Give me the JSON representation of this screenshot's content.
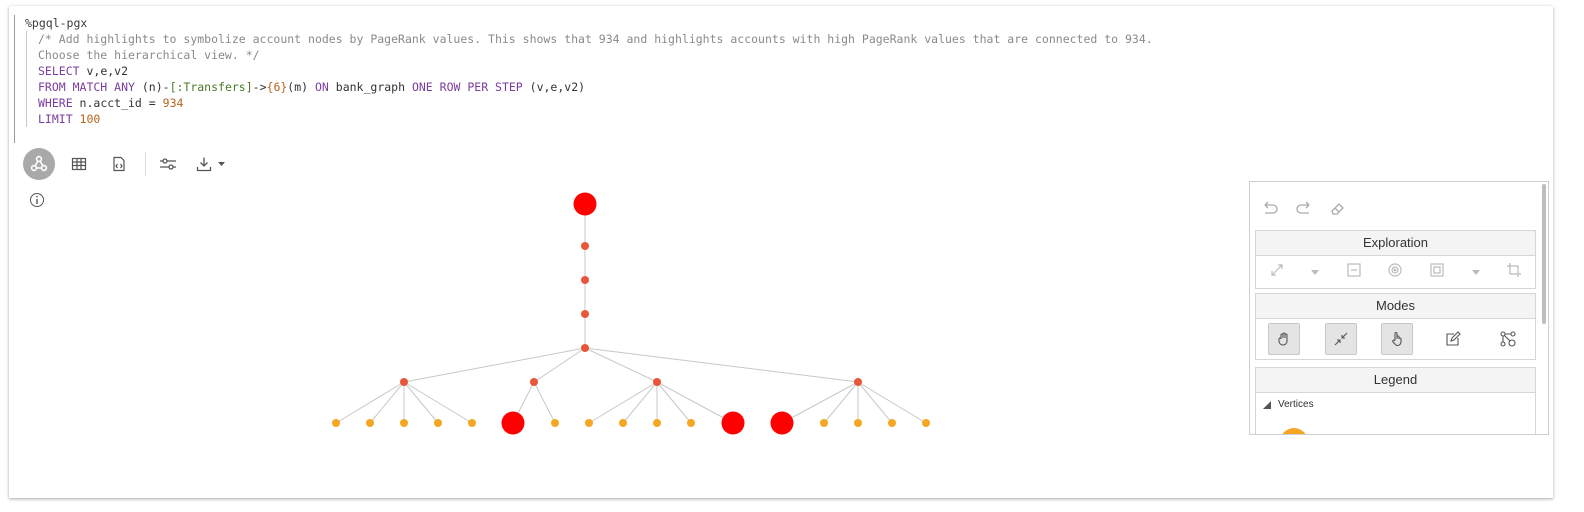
{
  "code": {
    "magic": "%pgql-pgx",
    "comment1": "/* Add highlights to symbolize account nodes by PageRank values. This shows that 934 and highlights accounts with high PageRank values that are connected to 934.",
    "comment2": "Choose the hierarchical view. */",
    "select_kw": "SELECT",
    "select_rest": " v,e,v2",
    "from_kw": "FROM MATCH ANY",
    "from_a": " (n)-",
    "from_label": "[:Transfers]",
    "from_b": "->",
    "from_quant": "{6}",
    "from_c": "(m) ",
    "on_kw": "ON",
    "from_d": " bank_graph ",
    "orps_kw": "ONE ROW PER STEP",
    "from_e": " (v,e,v2)",
    "where_kw": "WHERE",
    "where_rest": " n.acct_id = ",
    "where_num": "934",
    "limit_kw": "LIMIT",
    "limit_num": " 100"
  },
  "toolbar": {
    "items": [
      "graph-view-icon",
      "table-view-icon",
      "code-view-icon",
      "settings-sliders-icon",
      "download-icon"
    ]
  },
  "panel": {
    "exploration": "Exploration",
    "modes": "Modes",
    "legend": "Legend",
    "vertices": "Vertices"
  },
  "colors": {
    "highlight": "#ff0000",
    "inner_node": "#e8553a",
    "leaf_node": "#f5a623",
    "edge": "#c8c8c8"
  }
}
